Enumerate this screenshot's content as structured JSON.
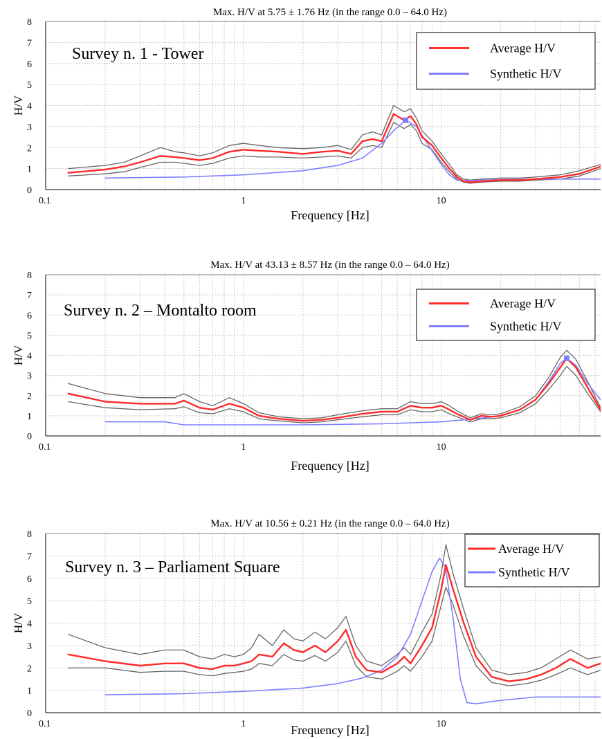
{
  "chart_data": [
    {
      "type": "line",
      "title": "Max. H/V at 5.75 ± 1.76 Hz (in the range 0.0 – 64.0 Hz)",
      "annotation": "Survey n. 1 - Tower",
      "xlabel": "Frequency [Hz]",
      "ylabel": "H/V",
      "xscale": "log",
      "xlim": [
        0.1,
        64
      ],
      "ylim": [
        0,
        8
      ],
      "xticks": [
        {
          "v": 0.1,
          "label": "0.1"
        },
        {
          "v": 1,
          "label": "1"
        },
        {
          "v": 10,
          "label": "10"
        }
      ],
      "yticks": [
        0,
        1,
        2,
        3,
        4,
        5,
        6,
        7,
        8
      ],
      "grid": true,
      "legend": {
        "position": "top-right",
        "entries": [
          {
            "label": "Average H/V",
            "color": "#ff2a2a"
          },
          {
            "label": "Synthetic H/V",
            "color": "#7f7fff"
          }
        ]
      },
      "peak_marker": {
        "x": 6.6,
        "y": 3.3
      },
      "series": [
        {
          "name": "Average H/V",
          "role": "average",
          "color": "#ff2a2a",
          "x": [
            0.13,
            0.2,
            0.25,
            0.3,
            0.38,
            0.45,
            0.5,
            0.6,
            0.7,
            0.85,
            1,
            1.2,
            1.5,
            2,
            2.5,
            3,
            3.5,
            4,
            4.5,
            5,
            5.75,
            6.5,
            7,
            7.5,
            8,
            9,
            10,
            11,
            12,
            13,
            14,
            16,
            20,
            25,
            30,
            40,
            50,
            64
          ],
          "values": [
            0.8,
            0.95,
            1.1,
            1.3,
            1.6,
            1.55,
            1.5,
            1.4,
            1.5,
            1.8,
            1.9,
            1.85,
            1.8,
            1.7,
            1.8,
            1.85,
            1.7,
            2.3,
            2.4,
            2.3,
            3.6,
            3.3,
            3.5,
            3.1,
            2.5,
            2.1,
            1.5,
            1.0,
            0.6,
            0.4,
            0.35,
            0.4,
            0.45,
            0.45,
            0.5,
            0.6,
            0.75,
            1.1
          ]
        },
        {
          "name": "",
          "role": "upper",
          "color": "#666666",
          "x": [
            0.13,
            0.2,
            0.25,
            0.3,
            0.38,
            0.45,
            0.5,
            0.6,
            0.7,
            0.85,
            1,
            1.2,
            1.5,
            2,
            2.5,
            3,
            3.5,
            4,
            4.5,
            5,
            5.75,
            6.5,
            7,
            7.5,
            8,
            9,
            10,
            11,
            12,
            13,
            14,
            16,
            20,
            25,
            30,
            40,
            50,
            64
          ],
          "values": [
            1.0,
            1.15,
            1.3,
            1.6,
            2.0,
            1.8,
            1.75,
            1.6,
            1.75,
            2.1,
            2.2,
            2.1,
            2.0,
            1.95,
            2.0,
            2.1,
            1.9,
            2.6,
            2.75,
            2.6,
            4.0,
            3.7,
            3.85,
            3.4,
            2.8,
            2.3,
            1.7,
            1.2,
            0.7,
            0.5,
            0.45,
            0.5,
            0.55,
            0.55,
            0.6,
            0.7,
            0.9,
            1.2
          ]
        },
        {
          "name": "",
          "role": "lower",
          "color": "#666666",
          "x": [
            0.13,
            0.2,
            0.25,
            0.3,
            0.38,
            0.45,
            0.5,
            0.6,
            0.7,
            0.85,
            1,
            1.2,
            1.5,
            2,
            2.5,
            3,
            3.5,
            4,
            4.5,
            5,
            5.75,
            6.5,
            7,
            7.5,
            8,
            9,
            10,
            11,
            12,
            13,
            14,
            16,
            20,
            25,
            30,
            40,
            50,
            64
          ],
          "values": [
            0.65,
            0.75,
            0.85,
            1.05,
            1.3,
            1.3,
            1.25,
            1.15,
            1.25,
            1.5,
            1.6,
            1.55,
            1.55,
            1.5,
            1.55,
            1.6,
            1.5,
            2.0,
            2.1,
            2.0,
            3.2,
            2.9,
            3.1,
            2.8,
            2.2,
            1.9,
            1.3,
            0.85,
            0.5,
            0.35,
            0.3,
            0.35,
            0.4,
            0.4,
            0.45,
            0.5,
            0.65,
            1.0
          ]
        },
        {
          "name": "Synthetic H/V",
          "role": "synthetic",
          "color": "#7f7fff",
          "x": [
            0.2,
            0.5,
            1,
            2,
            3,
            4,
            5,
            5.75,
            6.6,
            7.5,
            8.5,
            10,
            11,
            12,
            13,
            14,
            16,
            20,
            30,
            64
          ],
          "values": [
            0.55,
            0.6,
            0.7,
            0.9,
            1.15,
            1.5,
            2.2,
            2.8,
            3.3,
            3.0,
            2.2,
            1.2,
            0.7,
            0.45,
            0.42,
            0.42,
            0.45,
            0.48,
            0.5,
            0.5
          ]
        }
      ]
    },
    {
      "type": "line",
      "title": "Max. H/V at 43.13 ± 8.57 Hz (in the range 0.0 – 64.0 Hz)",
      "annotation": "Survey n. 2 – Montalto room",
      "xlabel": "Frequency [Hz]",
      "ylabel": "H/V",
      "xscale": "log",
      "xlim": [
        0.1,
        64
      ],
      "ylim": [
        0,
        8
      ],
      "xticks": [
        {
          "v": 0.1,
          "label": "0.1"
        },
        {
          "v": 1,
          "label": "1"
        },
        {
          "v": 10,
          "label": "10"
        }
      ],
      "yticks": [
        0,
        1,
        2,
        3,
        4,
        5,
        6,
        7,
        8
      ],
      "grid": true,
      "legend": {
        "position": "top-right",
        "entries": [
          {
            "label": "Average H/V",
            "color": "#ff2a2a"
          },
          {
            "label": "Synthetic H/V",
            "color": "#7f7fff"
          }
        ]
      },
      "peak_marker": {
        "x": 43.13,
        "y": 3.85
      },
      "series": [
        {
          "name": "Average H/V",
          "role": "average",
          "color": "#ff2a2a",
          "x": [
            0.13,
            0.2,
            0.3,
            0.45,
            0.5,
            0.6,
            0.7,
            0.85,
            1,
            1.2,
            1.5,
            2,
            2.5,
            3,
            4,
            5,
            6,
            7,
            8,
            9,
            10,
            11,
            12,
            14,
            16,
            18,
            20,
            25,
            30,
            35,
            40,
            43.13,
            48,
            55,
            64
          ],
          "values": [
            2.1,
            1.7,
            1.6,
            1.6,
            1.75,
            1.4,
            1.3,
            1.6,
            1.4,
            1.0,
            0.85,
            0.75,
            0.8,
            0.9,
            1.1,
            1.2,
            1.2,
            1.5,
            1.4,
            1.4,
            1.5,
            1.3,
            1.1,
            0.8,
            1.0,
            0.95,
            1.0,
            1.3,
            1.8,
            2.6,
            3.4,
            3.85,
            3.4,
            2.4,
            1.3
          ]
        },
        {
          "name": "",
          "role": "upper",
          "color": "#666666",
          "x": [
            0.13,
            0.2,
            0.3,
            0.45,
            0.5,
            0.6,
            0.7,
            0.85,
            1,
            1.2,
            1.5,
            2,
            2.5,
            3,
            4,
            5,
            6,
            7,
            8,
            9,
            10,
            11,
            12,
            14,
            16,
            18,
            20,
            25,
            30,
            35,
            40,
            43.13,
            48,
            55,
            64
          ],
          "values": [
            2.6,
            2.1,
            1.9,
            1.9,
            2.1,
            1.7,
            1.5,
            1.9,
            1.6,
            1.15,
            0.95,
            0.85,
            0.9,
            1.05,
            1.25,
            1.35,
            1.35,
            1.7,
            1.6,
            1.6,
            1.7,
            1.5,
            1.25,
            0.9,
            1.1,
            1.05,
            1.1,
            1.45,
            2.0,
            2.9,
            3.9,
            4.25,
            3.8,
            2.7,
            1.4
          ]
        },
        {
          "name": "",
          "role": "lower",
          "color": "#666666",
          "x": [
            0.13,
            0.2,
            0.3,
            0.45,
            0.5,
            0.6,
            0.7,
            0.85,
            1,
            1.2,
            1.5,
            2,
            2.5,
            3,
            4,
            5,
            6,
            7,
            8,
            9,
            10,
            11,
            12,
            14,
            16,
            18,
            20,
            25,
            30,
            35,
            40,
            43.13,
            48,
            55,
            64
          ],
          "values": [
            1.7,
            1.4,
            1.3,
            1.35,
            1.45,
            1.15,
            1.1,
            1.35,
            1.2,
            0.85,
            0.75,
            0.65,
            0.7,
            0.8,
            0.95,
            1.05,
            1.05,
            1.3,
            1.2,
            1.2,
            1.3,
            1.1,
            0.95,
            0.7,
            0.85,
            0.85,
            0.9,
            1.15,
            1.6,
            2.3,
            3.0,
            3.45,
            3.0,
            2.1,
            1.2
          ]
        },
        {
          "name": "Synthetic H/V",
          "role": "synthetic",
          "color": "#7f7fff",
          "x": [
            0.2,
            0.4,
            0.5,
            1,
            2,
            5,
            10,
            15,
            20,
            25,
            30,
            35,
            40,
            43.13,
            48,
            55,
            64
          ],
          "values": [
            0.7,
            0.7,
            0.55,
            0.55,
            0.55,
            0.6,
            0.7,
            0.85,
            1.0,
            1.3,
            1.8,
            2.7,
            3.6,
            3.85,
            3.5,
            2.6,
            1.8
          ]
        }
      ]
    },
    {
      "type": "line",
      "title": "Max. H/V at 10.56 ± 0.21 Hz (in the range 0.0 – 64.0 Hz)",
      "annotation": "Survey n. 3 – Parliament Square",
      "xlabel": "Frequency [Hz]",
      "ylabel": "H/V",
      "xscale": "log",
      "xlim": [
        0.1,
        64
      ],
      "ylim": [
        0,
        8
      ],
      "xticks": [
        {
          "v": 0.1,
          "label": "0.1"
        },
        {
          "v": 1,
          "label": "1"
        },
        {
          "v": 10,
          "label": "10"
        }
      ],
      "yticks": [
        0,
        1,
        2,
        3,
        4,
        5,
        6,
        7,
        8
      ],
      "grid": true,
      "legend": {
        "position": "top-right",
        "entries": [
          {
            "label": "Average H/V",
            "color": "#ff2a2a"
          },
          {
            "label": "Synthetic H/V",
            "color": "#7f7fff"
          }
        ]
      },
      "peak_marker": null,
      "series": [
        {
          "name": "Average H/V",
          "role": "average",
          "color": "#ff2a2a",
          "x": [
            0.13,
            0.2,
            0.3,
            0.4,
            0.5,
            0.6,
            0.7,
            0.8,
            0.9,
            1.0,
            1.1,
            1.2,
            1.4,
            1.6,
            1.8,
            2.0,
            2.3,
            2.6,
            3.0,
            3.3,
            3.7,
            4.2,
            5.0,
            6.0,
            6.5,
            7.0,
            8.0,
            9.0,
            10.0,
            10.56,
            11.5,
            13.0,
            15.0,
            18.0,
            22.0,
            27.0,
            32.0,
            38.0,
            45.0,
            55.0,
            64.0
          ],
          "values": [
            2.6,
            2.3,
            2.1,
            2.2,
            2.2,
            2.0,
            1.95,
            2.1,
            2.1,
            2.2,
            2.3,
            2.6,
            2.5,
            3.1,
            2.8,
            2.7,
            3.0,
            2.7,
            3.2,
            3.7,
            2.5,
            1.9,
            1.8,
            2.2,
            2.5,
            2.2,
            3.0,
            3.8,
            5.5,
            6.6,
            5.5,
            4.0,
            2.5,
            1.6,
            1.4,
            1.5,
            1.7,
            2.0,
            2.4,
            2.0,
            2.2
          ]
        },
        {
          "name": "",
          "role": "upper",
          "color": "#666666",
          "x": [
            0.13,
            0.2,
            0.3,
            0.4,
            0.5,
            0.6,
            0.7,
            0.8,
            0.9,
            1.0,
            1.1,
            1.2,
            1.4,
            1.6,
            1.8,
            2.0,
            2.3,
            2.6,
            3.0,
            3.3,
            3.7,
            4.2,
            5.0,
            6.0,
            6.5,
            7.0,
            8.0,
            9.0,
            10.0,
            10.56,
            11.5,
            13.0,
            15.0,
            18.0,
            22.0,
            27.0,
            32.0,
            38.0,
            45.0,
            55.0,
            64.0
          ],
          "values": [
            3.5,
            2.9,
            2.6,
            2.8,
            2.8,
            2.5,
            2.4,
            2.6,
            2.5,
            2.6,
            2.9,
            3.5,
            3.0,
            3.7,
            3.3,
            3.2,
            3.6,
            3.3,
            3.8,
            4.3,
            3.0,
            2.3,
            2.1,
            2.6,
            2.9,
            2.6,
            3.6,
            4.4,
            6.2,
            7.5,
            6.2,
            4.6,
            2.9,
            1.9,
            1.7,
            1.8,
            2.0,
            2.4,
            2.8,
            2.4,
            2.5
          ]
        },
        {
          "name": "",
          "role": "lower",
          "color": "#666666",
          "x": [
            0.13,
            0.2,
            0.3,
            0.4,
            0.5,
            0.6,
            0.7,
            0.8,
            0.9,
            1.0,
            1.1,
            1.2,
            1.4,
            1.6,
            1.8,
            2.0,
            2.3,
            2.6,
            3.0,
            3.3,
            3.7,
            4.2,
            5.0,
            6.0,
            6.5,
            7.0,
            8.0,
            9.0,
            10.0,
            10.56,
            11.5,
            13.0,
            15.0,
            18.0,
            22.0,
            27.0,
            32.0,
            38.0,
            45.0,
            55.0,
            64.0
          ],
          "values": [
            2.0,
            2.0,
            1.8,
            1.85,
            1.85,
            1.7,
            1.65,
            1.75,
            1.8,
            1.85,
            1.95,
            2.2,
            2.1,
            2.6,
            2.35,
            2.3,
            2.55,
            2.3,
            2.7,
            3.2,
            2.1,
            1.6,
            1.5,
            1.85,
            2.1,
            1.85,
            2.5,
            3.2,
            4.8,
            5.6,
            4.8,
            3.4,
            2.1,
            1.35,
            1.2,
            1.3,
            1.45,
            1.7,
            2.0,
            1.7,
            1.9
          ]
        },
        {
          "name": "Synthetic H/V",
          "role": "synthetic",
          "color": "#7f7fff",
          "x": [
            0.2,
            0.5,
            1,
            2,
            3,
            4,
            5,
            6,
            7,
            8,
            9,
            9.8,
            10.5,
            11.5,
            12.5,
            13.5,
            15,
            20,
            30,
            64
          ],
          "values": [
            0.8,
            0.85,
            0.95,
            1.1,
            1.3,
            1.55,
            1.9,
            2.5,
            3.5,
            5.0,
            6.3,
            6.9,
            6.5,
            4.2,
            1.5,
            0.45,
            0.4,
            0.55,
            0.7,
            0.7
          ]
        }
      ]
    }
  ]
}
